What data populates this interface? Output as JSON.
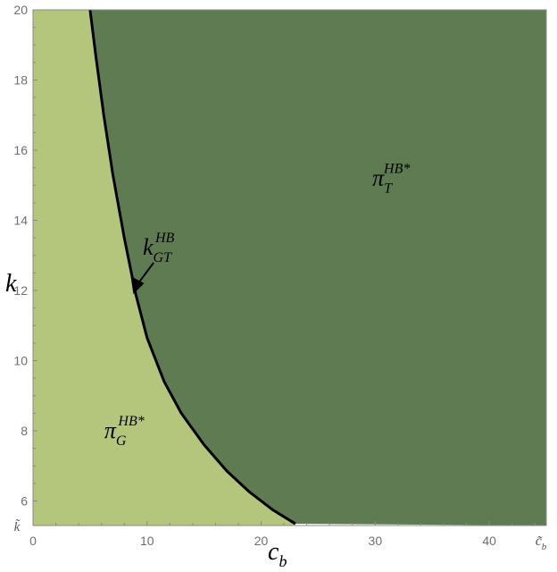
{
  "chart_data": {
    "type": "area",
    "xlabel": "c",
    "xlabel_sub": "b",
    "ylabel": "k",
    "xlim": [
      0,
      45
    ],
    "ylim": [
      5.3,
      20
    ],
    "x_ticks": [
      0,
      10,
      20,
      30,
      40
    ],
    "x_extra_tick_label": "c̃",
    "x_extra_tick_sub": "b",
    "x_extra_tick_value": 45,
    "y_ticks": [
      6,
      8,
      10,
      12,
      14,
      16,
      18,
      20
    ],
    "y_extra_tick_label": "k̃",
    "y_extra_tick_value": 5.3,
    "grid": false,
    "boundary": {
      "name": "k",
      "sup": "HB",
      "sub": "GT",
      "points": [
        [
          5.0,
          20.0
        ],
        [
          5.5,
          18.7
        ],
        [
          6.2,
          17.0
        ],
        [
          7.0,
          15.3
        ],
        [
          8.0,
          13.5
        ],
        [
          9.0,
          11.9
        ],
        [
          10.0,
          10.65
        ],
        [
          11.5,
          9.4
        ],
        [
          13.0,
          8.5
        ],
        [
          15.0,
          7.6
        ],
        [
          17.0,
          6.85
        ],
        [
          19.0,
          6.25
        ],
        [
          21.0,
          5.75
        ],
        [
          22.0,
          5.55
        ],
        [
          23.0,
          5.35
        ]
      ]
    },
    "arrow_target": [
      8.8,
      11.9
    ],
    "regions": [
      {
        "name": "π",
        "sup": "HB*",
        "sub": "G",
        "color": "#b3c67c",
        "label_at": [
          7.5,
          8.0
        ]
      },
      {
        "name": "π",
        "sup": "HB*",
        "sub": "T",
        "color": "#5e7b51",
        "label_at": [
          31.0,
          15.2
        ]
      }
    ]
  }
}
